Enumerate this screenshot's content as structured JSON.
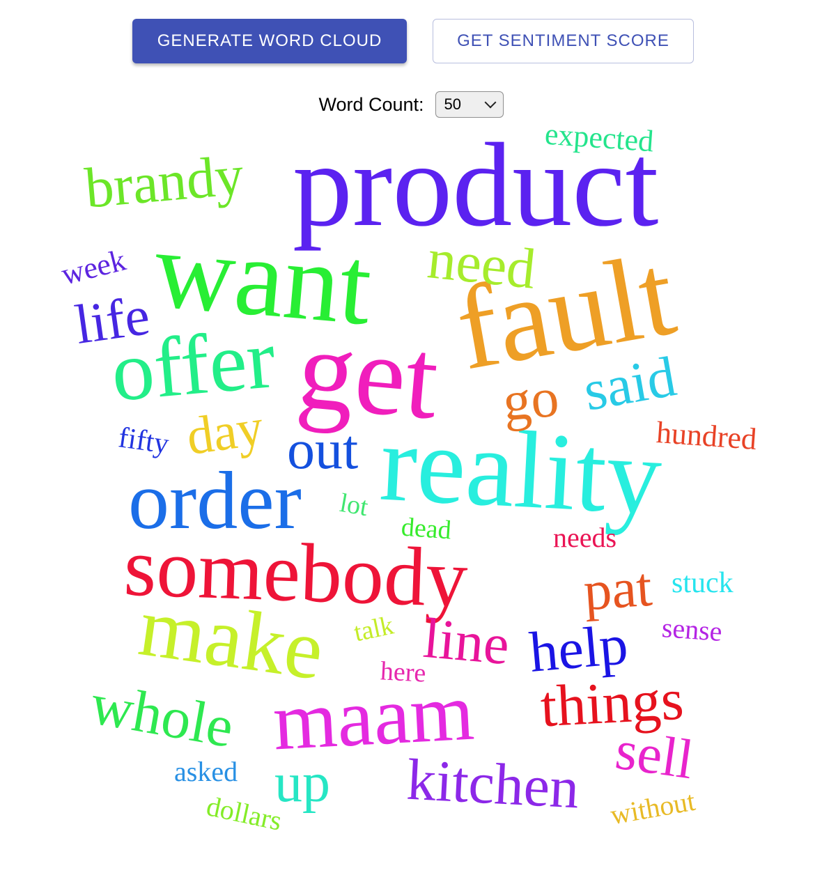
{
  "toolbar": {
    "generate_label": "GENERATE WORD CLOUD",
    "sentiment_label": "GET SENTIMENT SCORE"
  },
  "word_count": {
    "label": "Word Count:",
    "selected": "50"
  },
  "words": [
    {
      "text": "product",
      "color": "#5b22f0"
    },
    {
      "text": "fault",
      "color": "#ee9f26"
    },
    {
      "text": "want",
      "color": "#28ee34"
    },
    {
      "text": "get",
      "color": "#f01ebc"
    },
    {
      "text": "reality",
      "color": "#28eede"
    },
    {
      "text": "offer",
      "color": "#22ee88"
    },
    {
      "text": "somebody",
      "color": "#ee1438"
    },
    {
      "text": "order",
      "color": "#1b6ee8"
    },
    {
      "text": "make",
      "color": "#c6f02a"
    },
    {
      "text": "maam",
      "color": "#e42ae0"
    },
    {
      "text": "brandy",
      "color": "#6ce628"
    },
    {
      "text": "need",
      "color": "#a6ec2c"
    },
    {
      "text": "things",
      "color": "#e6121e"
    },
    {
      "text": "kitchen",
      "color": "#8c28e8"
    },
    {
      "text": "whole",
      "color": "#2ee850"
    },
    {
      "text": "line",
      "color": "#e8149a"
    },
    {
      "text": "help",
      "color": "#1a14e4"
    },
    {
      "text": "said",
      "color": "#28cae6"
    },
    {
      "text": "go",
      "color": "#e87422"
    },
    {
      "text": "pat",
      "color": "#e65420"
    },
    {
      "text": "out",
      "color": "#1450de"
    },
    {
      "text": "day",
      "color": "#f0ce26"
    },
    {
      "text": "life",
      "color": "#4626e2"
    },
    {
      "text": "up",
      "color": "#26e6c4"
    },
    {
      "text": "sell",
      "color": "#e824cc"
    },
    {
      "text": "expected",
      "color": "#24e48c"
    },
    {
      "text": "hundred",
      "color": "#e84226"
    },
    {
      "text": "week",
      "color": "#5c24e0"
    },
    {
      "text": "fifty",
      "color": "#2234e0"
    },
    {
      "text": "stuck",
      "color": "#26e4ee"
    },
    {
      "text": "sense",
      "color": "#b424e4"
    },
    {
      "text": "needs",
      "color": "#ea1454"
    },
    {
      "text": "dead",
      "color": "#36ec2c"
    },
    {
      "text": "lot",
      "color": "#40e670"
    },
    {
      "text": "talk",
      "color": "#c4ec28"
    },
    {
      "text": "here",
      "color": "#e628ae"
    },
    {
      "text": "asked",
      "color": "#2890e4"
    },
    {
      "text": "dollars",
      "color": "#84ec28"
    },
    {
      "text": "without",
      "color": "#e8ba26"
    }
  ]
}
